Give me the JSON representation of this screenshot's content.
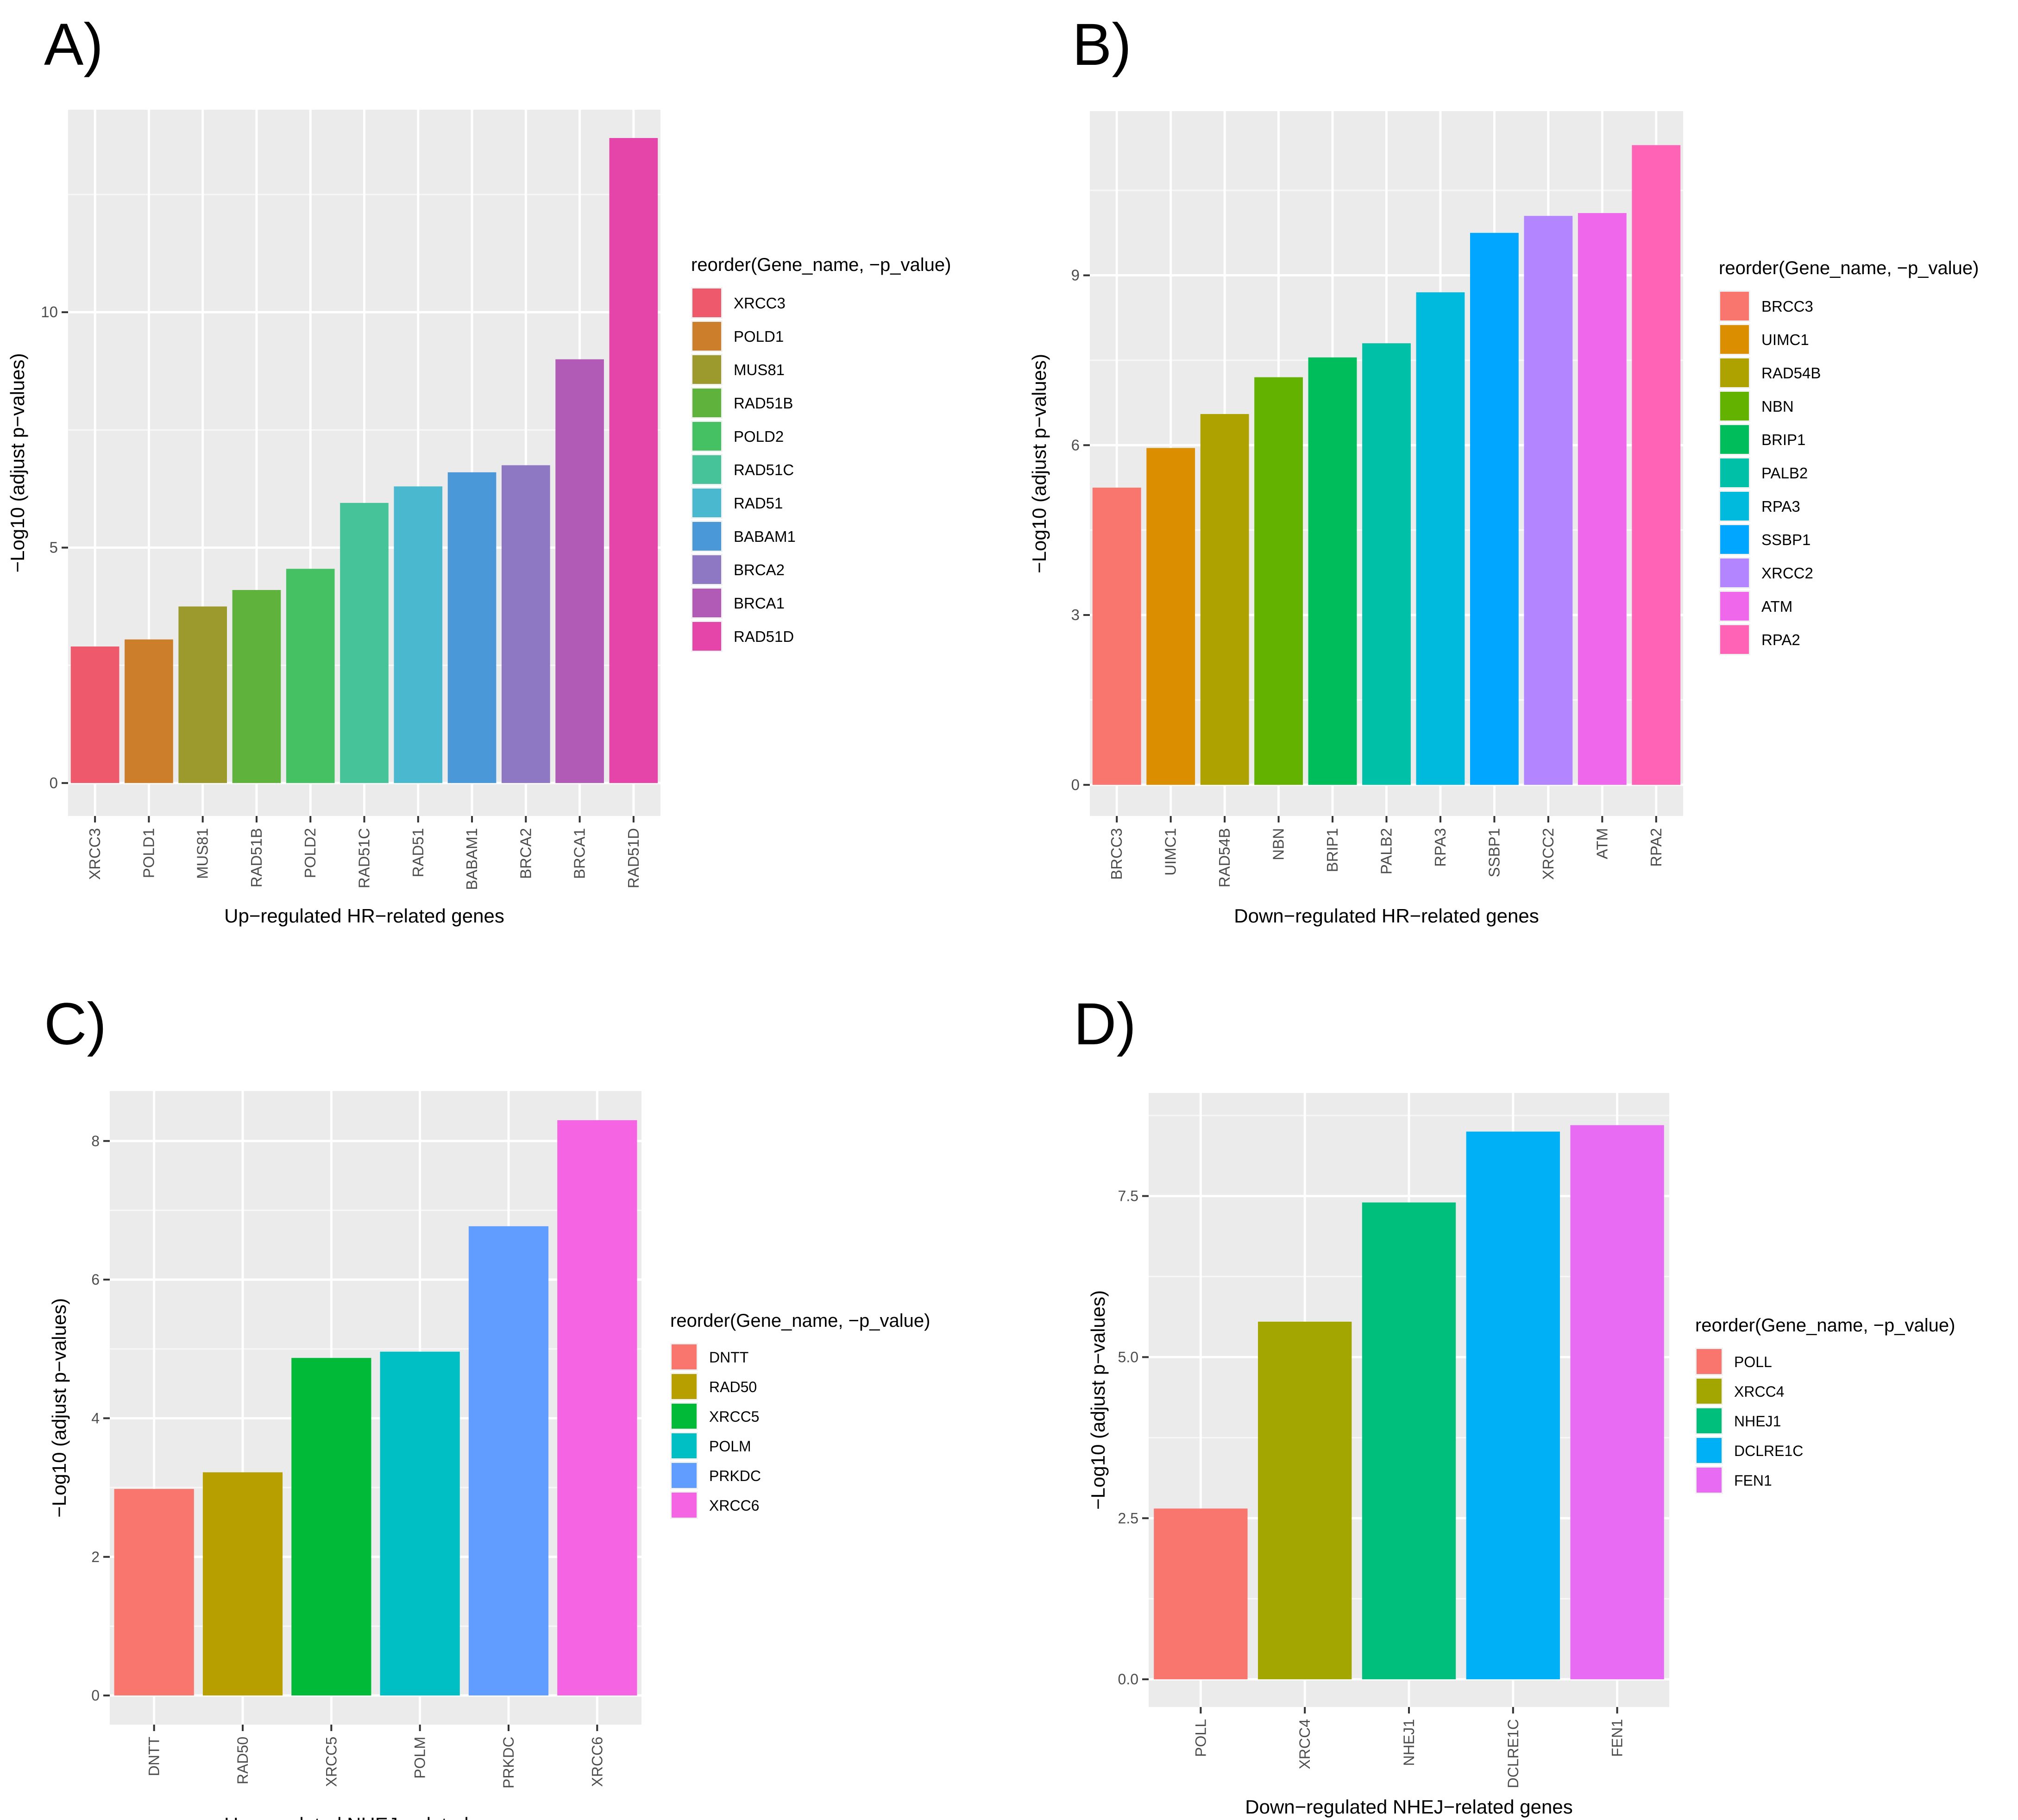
{
  "chart_data": [
    {
      "panel_label": "A)",
      "type": "bar",
      "categories": [
        "XRCC3",
        "POLD1",
        "MUS81",
        "RAD51B",
        "POLD2",
        "RAD51C",
        "RAD51",
        "BABAM1",
        "BRCA2",
        "BRCA1",
        "RAD51D"
      ],
      "values": [
        2.9,
        3.05,
        3.75,
        4.1,
        4.55,
        5.95,
        6.3,
        6.6,
        6.75,
        9.0,
        13.7
      ],
      "colors": [
        "#EE5A6B",
        "#CC7E2A",
        "#9C9A2C",
        "#5FB23B",
        "#45C063",
        "#47C39A",
        "#4AB8CF",
        "#4A98D8",
        "#8E78C3",
        "#B25BB6",
        "#E545A8"
      ],
      "xlabel": "Up−regulated HR−related genes",
      "ylabel": "−Log10 (adjust p−values)",
      "yticks": [
        0,
        5,
        10
      ],
      "ylim": [
        -0.7,
        14.3
      ],
      "legend_title": "reorder(Gene_name, −p_value)",
      "legend_position": "right",
      "grid": true
    },
    {
      "panel_label": "B)",
      "type": "bar",
      "categories": [
        "BRCC3",
        "UIMC1",
        "RAD54B",
        "NBN",
        "BRIP1",
        "PALB2",
        "RPA3",
        "SSBP1",
        "XRCC2",
        "ATM",
        "RPA2"
      ],
      "values": [
        5.25,
        5.95,
        6.55,
        7.2,
        7.55,
        7.8,
        8.7,
        9.75,
        10.05,
        10.1,
        11.3
      ],
      "colors": [
        "#F8766D",
        "#DB8E00",
        "#AEA200",
        "#64B200",
        "#00BD5C",
        "#00C1A7",
        "#00BADE",
        "#00A6FF",
        "#B385FF",
        "#EF67EB",
        "#FF63B6"
      ],
      "xlabel": "Down−regulated HR−related genes",
      "ylabel": "−Log10 (adjust p−values)",
      "yticks": [
        0,
        3,
        6,
        9
      ],
      "ylim": [
        -0.55,
        11.9
      ],
      "legend_title": "reorder(Gene_name, −p_value)",
      "legend_position": "right",
      "grid": true
    },
    {
      "panel_label": "C)",
      "type": "bar",
      "categories": [
        "DNTT",
        "RAD50",
        "XRCC5",
        "POLM",
        "PRKDC",
        "XRCC6"
      ],
      "values": [
        2.98,
        3.22,
        4.87,
        4.96,
        6.77,
        8.3
      ],
      "colors": [
        "#F8766D",
        "#B79F00",
        "#00BA38",
        "#00BFC4",
        "#619CFF",
        "#F564E3"
      ],
      "xlabel": "Up−regulated NHEJ−related genes",
      "ylabel": "−Log10 (adjust p−values)",
      "yticks": [
        0,
        2,
        4,
        6,
        8
      ],
      "ylim": [
        -0.42,
        8.72
      ],
      "legend_title": "reorder(Gene_name, −p_value)",
      "legend_position": "right",
      "grid": true
    },
    {
      "panel_label": "D)",
      "type": "bar",
      "categories": [
        "POLL",
        "XRCC4",
        "NHEJ1",
        "DCLRE1C",
        "FEN1"
      ],
      "values": [
        2.65,
        5.55,
        7.4,
        8.5,
        8.6
      ],
      "colors": [
        "#F8766D",
        "#A3A500",
        "#00BF7D",
        "#00B0F6",
        "#E76BF3"
      ],
      "xlabel": "Down−regulated NHEJ−related genes",
      "ylabel": "−Log10 (adjust p−values)",
      "yticks": [
        0,
        2.5,
        5,
        7.5
      ],
      "ytick_labels": [
        "0.0",
        "2.5",
        "5.0",
        "7.5"
      ],
      "ylim": [
        -0.43,
        9.1
      ],
      "legend_title": "reorder(Gene_name, −p_value)",
      "legend_position": "right",
      "grid": true
    }
  ]
}
